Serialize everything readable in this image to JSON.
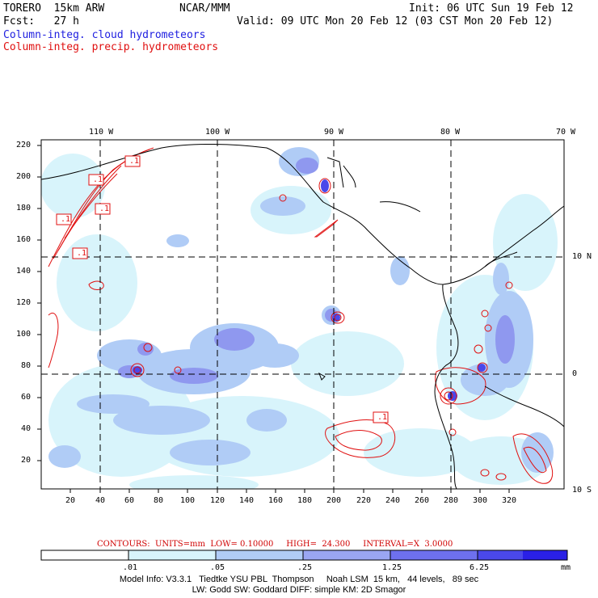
{
  "header": {
    "model": "TORERO  15km ARW",
    "center": "NCAR/MMM",
    "init": "Init: 06 UTC Sun 19 Feb 12",
    "fcst": "Fcst:   27 h",
    "valid": "Valid: 09 UTC Mon 20 Feb 12 (03 CST Mon 20 Feb 12)",
    "field1": "Column-integ. cloud hydrometeors",
    "field2": "Column-integ. precip. hydrometeors",
    "field1_color": "#2020e0",
    "field2_color": "#e01010"
  },
  "map": {
    "lon_labels": [
      "110 W",
      "100 W",
      "90 W",
      "80 W",
      "70 W"
    ],
    "lat_labels": [
      "10 N",
      "0",
      "10 S"
    ],
    "y_ticks": [
      "20",
      "40",
      "60",
      "80",
      "100",
      "120",
      "140",
      "160",
      "180",
      "200",
      "220"
    ],
    "x_ticks": [
      "20",
      "40",
      "60",
      "80",
      "100",
      "120",
      "140",
      "160",
      "180",
      "200",
      "220",
      "240",
      "260",
      "280",
      "300",
      "320"
    ],
    "contour_labels": [
      ".1",
      ".1",
      ".1",
      ".1",
      ".1",
      ".1"
    ]
  },
  "contour_info": {
    "label": "CONTOURS:  UNITS=mm  LOW= 0.10000     HIGH=  24.300     INTERVAL=X  3.0000"
  },
  "colorbar": {
    "labels": [
      ".01",
      ".05",
      ".25",
      "1.25",
      "6.25"
    ],
    "unit": "mm",
    "colors": [
      "#ffffff",
      "#d8f4fb",
      "#b0ccf6",
      "#9aa6f2",
      "#6e70ee",
      "#4a48ea",
      "#2a20e6"
    ]
  },
  "footer": {
    "line1": "Model Info: V3.3.1   Tiedtke YSU PBL  Thompson     Noah LSM  15 km,   44 levels,   89 sec",
    "line2": "LW: Godd SW: Goddard DIFF: simple KM: 2D Smagor"
  }
}
